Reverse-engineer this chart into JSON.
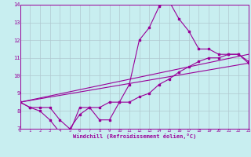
{
  "xlabel": "Windchill (Refroidissement éolien,°C)",
  "bg_color": "#c8eef0",
  "line_color": "#990099",
  "grid_color": "#b0c8d0",
  "xmin": 0,
  "xmax": 23,
  "ymin": 7,
  "ymax": 14,
  "line1_x": [
    0,
    1,
    2,
    3,
    4,
    5,
    6,
    7,
    8,
    9,
    10,
    11,
    12,
    13,
    14,
    15,
    16,
    17,
    18,
    19,
    20,
    21,
    22,
    23
  ],
  "line1_y": [
    8.5,
    8.2,
    8.0,
    7.5,
    6.8,
    6.8,
    8.2,
    8.2,
    8.2,
    8.5,
    8.5,
    9.5,
    12.0,
    12.7,
    13.9,
    14.2,
    13.2,
    12.5,
    11.5,
    11.5,
    11.2,
    11.2,
    11.2,
    10.7
  ],
  "line2_x": [
    0,
    1,
    2,
    3,
    4,
    5,
    6,
    7,
    8,
    9,
    10,
    11,
    12,
    13,
    14,
    15,
    16,
    17,
    18,
    19,
    20,
    21,
    22,
    23
  ],
  "line2_y": [
    8.5,
    8.2,
    8.2,
    8.2,
    7.5,
    7.0,
    7.8,
    8.2,
    7.5,
    7.5,
    8.5,
    8.5,
    8.8,
    9.0,
    9.5,
    9.8,
    10.2,
    10.5,
    10.8,
    11.0,
    11.0,
    11.2,
    11.2,
    10.8
  ],
  "line3_x": [
    0,
    23
  ],
  "line3_y": [
    8.5,
    10.7
  ],
  "line4_x": [
    0,
    23
  ],
  "line4_y": [
    8.5,
    11.2
  ]
}
